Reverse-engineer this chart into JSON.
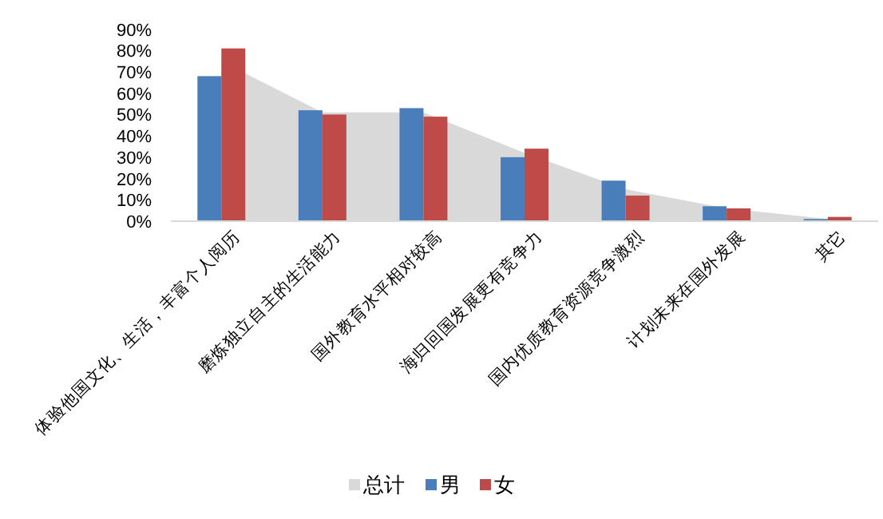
{
  "chart_data": {
    "type": "bar",
    "categories": [
      "体验他国文化、生活，丰富个人阅历",
      "磨炼独立自主的生活能力",
      "国外教育水平相对较高",
      "海归回国发展更有竞争力",
      "国内优质教育资源竞争激烈",
      "计划未来在国外发展",
      "其它"
    ],
    "series": [
      {
        "name": "总计",
        "type": "area",
        "color": "#d9d9d9",
        "values": [
          75,
          51,
          51,
          32,
          15,
          6,
          1
        ]
      },
      {
        "name": "男",
        "color": "#4a7ebb",
        "values": [
          68,
          52,
          53,
          30,
          19,
          7,
          1
        ]
      },
      {
        "name": "女",
        "color": "#be4b48",
        "values": [
          81,
          50,
          49,
          34,
          12,
          6,
          2
        ]
      }
    ],
    "ylim": [
      0,
      90
    ],
    "yticks": [
      {
        "value": 0,
        "label": "0%"
      },
      {
        "value": 10,
        "label": "10%"
      },
      {
        "value": 20,
        "label": "20%"
      },
      {
        "value": 30,
        "label": "30%"
      },
      {
        "value": 40,
        "label": "40%"
      },
      {
        "value": 50,
        "label": "50%"
      },
      {
        "value": 60,
        "label": "60%"
      },
      {
        "value": 70,
        "label": "70%"
      },
      {
        "value": 80,
        "label": "80%"
      },
      {
        "value": 90,
        "label": "90%"
      }
    ],
    "legend": "bottom"
  }
}
